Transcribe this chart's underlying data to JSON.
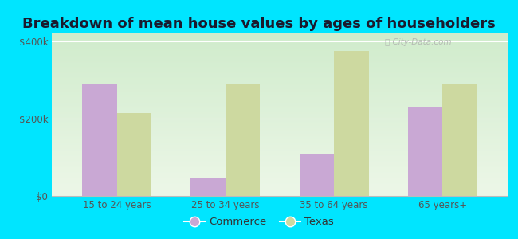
{
  "title": "Breakdown of mean house values by ages of householders",
  "categories": [
    "15 to 24 years",
    "25 to 34 years",
    "35 to 64 years",
    "65 years+"
  ],
  "commerce_values": [
    290000,
    45000,
    110000,
    230000
  ],
  "texas_values": [
    215000,
    290000,
    375000,
    290000
  ],
  "commerce_color": "#c9a8d4",
  "texas_color": "#cdd9a0",
  "plot_bg_top": "#f5fdf0",
  "plot_bg_bottom": "#d8f0d0",
  "outer_background": "#00e5ff",
  "ylim": [
    0,
    420000
  ],
  "yticks": [
    0,
    200000,
    400000
  ],
  "ytick_labels": [
    "$0",
    "$200k",
    "$400k"
  ],
  "bar_width": 0.32,
  "legend_labels": [
    "Commerce",
    "Texas"
  ],
  "title_fontsize": 13,
  "tick_fontsize": 8.5,
  "legend_fontsize": 9.5
}
